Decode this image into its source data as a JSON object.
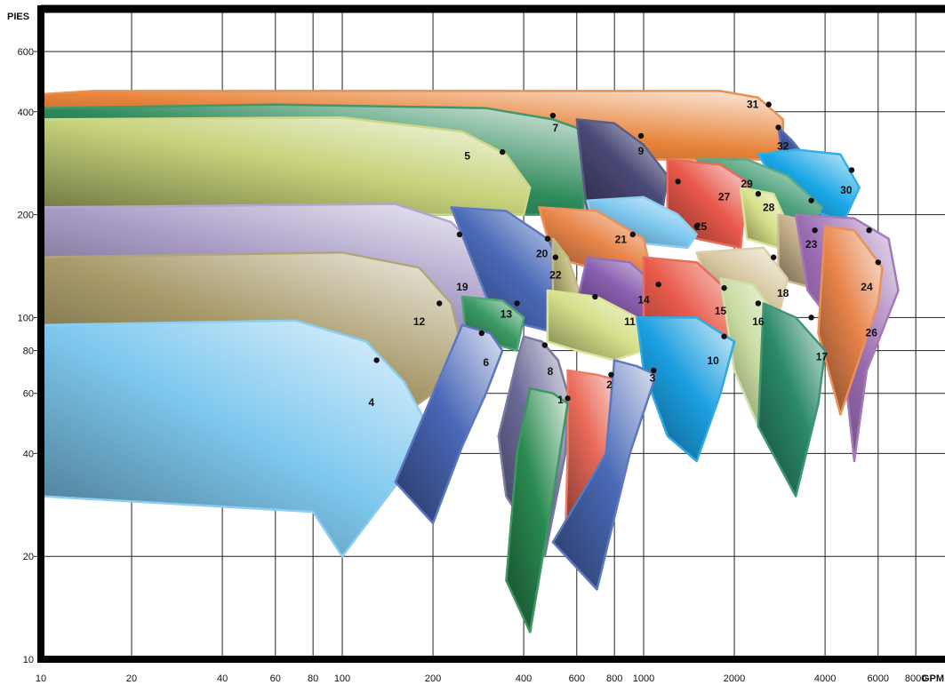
{
  "chart_data": {
    "type": "area",
    "title": "",
    "ylabel": "PIES",
    "xlabel": "GPM",
    "x_scale": "log",
    "y_scale": "log",
    "xlim": [
      10,
      10000
    ],
    "ylim": [
      10,
      800
    ],
    "grid": true,
    "x_ticks": [
      10,
      20,
      40,
      60,
      80,
      100,
      200,
      400,
      600,
      800,
      1000,
      2000,
      4000,
      6000,
      8000
    ],
    "x_tick_labels": [
      "10",
      "20",
      "40",
      "60",
      "80",
      "100",
      "200",
      "400",
      "600",
      "800",
      "1000",
      "2000",
      "4000",
      "6000",
      "8000"
    ],
    "y_ticks": [
      10,
      20,
      40,
      60,
      80,
      100,
      200,
      400,
      600
    ],
    "y_tick_labels": [
      "10",
      "20",
      "40",
      "60",
      "80",
      "100",
      "200",
      "400",
      "600"
    ],
    "zones": [
      {
        "id": "31",
        "bep": [
          2600,
          420
        ],
        "label_at": [
          2300,
          410
        ],
        "color": "#e8843a",
        "outline": [
          [
            10,
            450
          ],
          [
            15,
            460
          ],
          [
            1800,
            460
          ],
          [
            2400,
            440
          ],
          [
            2900,
            380
          ],
          [
            2900,
            290
          ],
          [
            10,
            290
          ]
        ]
      },
      {
        "id": "32",
        "bep": [
          2800,
          360
        ],
        "label_at": [
          2900,
          310
        ],
        "color": "#4a5fa8",
        "outline": [
          [
            2800,
            360
          ],
          [
            3100,
            330
          ],
          [
            3500,
            290
          ],
          [
            2900,
            290
          ]
        ]
      },
      {
        "id": "7",
        "bep": [
          500,
          390
        ],
        "label_at": [
          510,
          350
        ],
        "color": "#2e8a5a",
        "outline": [
          [
            10,
            410
          ],
          [
            60,
            420
          ],
          [
            300,
            410
          ],
          [
            500,
            380
          ],
          [
            650,
            350
          ],
          [
            630,
            200
          ],
          [
            10,
            200
          ]
        ]
      },
      {
        "id": "9",
        "bep": [
          980,
          340
        ],
        "label_at": [
          980,
          300
        ],
        "color": "#4a4a78",
        "outline": [
          [
            600,
            380
          ],
          [
            800,
            370
          ],
          [
            1000,
            320
          ],
          [
            1200,
            260
          ],
          [
            1150,
            200
          ],
          [
            650,
            200
          ]
        ]
      },
      {
        "id": "5",
        "bep": [
          340,
          305
        ],
        "label_at": [
          260,
          290
        ],
        "color": "#c7d27a",
        "outline": [
          [
            10,
            380
          ],
          [
            100,
            385
          ],
          [
            250,
            350
          ],
          [
            350,
            300
          ],
          [
            420,
            240
          ],
          [
            400,
            200
          ],
          [
            10,
            200
          ]
        ]
      },
      {
        "id": "30",
        "bep": [
          4900,
          270
        ],
        "label_at": [
          4700,
          230
        ],
        "color": "#1aa6e6",
        "outline": [
          [
            2400,
            300
          ],
          [
            3200,
            310
          ],
          [
            4500,
            300
          ],
          [
            5200,
            240
          ],
          [
            4600,
            190
          ],
          [
            3000,
            220
          ]
        ]
      },
      {
        "id": "29",
        "bep": [
          3600,
          220
        ],
        "label_at": [
          2200,
          240
        ],
        "color": "#4aa07a",
        "outline": [
          [
            1500,
            290
          ],
          [
            2200,
            290
          ],
          [
            3000,
            260
          ],
          [
            3900,
            210
          ],
          [
            3600,
            180
          ],
          [
            2200,
            200
          ]
        ]
      },
      {
        "id": "27",
        "bep": [
          1300,
          250
        ],
        "label_at": [
          1850,
          220
        ],
        "color": "#e8584a",
        "outline": [
          [
            1200,
            290
          ],
          [
            1800,
            280
          ],
          [
            2200,
            250
          ],
          [
            2100,
            160
          ],
          [
            1500,
            170
          ],
          [
            1200,
            200
          ]
        ]
      },
      {
        "id": "28",
        "bep": [
          2400,
          230
        ],
        "label_at": [
          2600,
          205
        ],
        "color": "#d6e08a",
        "outline": [
          [
            2100,
            240
          ],
          [
            2700,
            230
          ],
          [
            2900,
            200
          ],
          [
            2800,
            160
          ],
          [
            2200,
            170
          ]
        ]
      },
      {
        "id": "25",
        "bep": [
          1500,
          185
        ],
        "label_at": [
          1550,
          180
        ],
        "color": "#7ec8ef",
        "outline": [
          [
            650,
            220
          ],
          [
            1000,
            225
          ],
          [
            1300,
            200
          ],
          [
            1500,
            175
          ],
          [
            1400,
            160
          ],
          [
            700,
            170
          ]
        ]
      },
      {
        "id": "21",
        "bep": [
          920,
          175
        ],
        "label_at": [
          840,
          165
        ],
        "color": "#e8864a",
        "outline": [
          [
            450,
            210
          ],
          [
            700,
            205
          ],
          [
            1000,
            170
          ],
          [
            1050,
            140
          ],
          [
            900,
            130
          ],
          [
            500,
            150
          ]
        ]
      },
      {
        "id": "23",
        "bep": [
          3700,
          180
        ],
        "label_at": [
          3600,
          160
        ],
        "color": "#c4b08a",
        "outline": [
          [
            2800,
            200
          ],
          [
            3700,
            190
          ],
          [
            4200,
            160
          ],
          [
            3900,
            120
          ],
          [
            2800,
            130
          ]
        ]
      },
      {
        "id": "26",
        "bep": [
          5600,
          180
        ],
        "label_at": [
          5700,
          88
        ],
        "color": "#9a6ab0",
        "outline": [
          [
            3200,
            200
          ],
          [
            5000,
            195
          ],
          [
            6500,
            170
          ],
          [
            7000,
            120
          ],
          [
            5500,
            70
          ],
          [
            5000,
            38
          ],
          [
            4500,
            90
          ],
          [
            3500,
            120
          ]
        ]
      },
      {
        "id": "24",
        "bep": [
          6000,
          145
        ],
        "label_at": [
          5500,
          120
        ],
        "color": "#e8844a",
        "outline": [
          [
            4000,
            185
          ],
          [
            5000,
            180
          ],
          [
            6200,
            140
          ],
          [
            6000,
            110
          ],
          [
            4500,
            52
          ],
          [
            3800,
            90
          ]
        ]
      },
      {
        "id": "19",
        "bep": [
          245,
          175
        ],
        "label_at": [
          250,
          120
        ],
        "color": "#a89cc6",
        "outline": [
          [
            10,
            210
          ],
          [
            150,
            215
          ],
          [
            230,
            190
          ],
          [
            300,
            150
          ],
          [
            340,
            110
          ],
          [
            300,
            90
          ],
          [
            10,
            130
          ]
        ]
      },
      {
        "id": "20",
        "bep": [
          480,
          170
        ],
        "label_at": [
          460,
          150
        ],
        "color": "#4a6ab8",
        "outline": [
          [
            230,
            210
          ],
          [
            350,
            205
          ],
          [
            480,
            170
          ],
          [
            560,
            130
          ],
          [
            520,
            90
          ],
          [
            320,
            100
          ]
        ]
      },
      {
        "id": "22",
        "bep": [
          510,
          150
        ],
        "label_at": [
          510,
          130
        ],
        "color": "#b8b478",
        "outline": [
          [
            500,
            170
          ],
          [
            560,
            150
          ],
          [
            610,
            120
          ],
          [
            560,
            95
          ],
          [
            500,
            110
          ]
        ]
      },
      {
        "id": "18",
        "bep": [
          2700,
          150
        ],
        "label_at": [
          2900,
          115
        ],
        "color": "#d8c8a0",
        "outline": [
          [
            1500,
            155
          ],
          [
            2500,
            160
          ],
          [
            3000,
            130
          ],
          [
            2800,
            100
          ],
          [
            1700,
            110
          ]
        ]
      },
      {
        "id": "14",
        "bep": [
          1120,
          125
        ],
        "label_at": [
          1000,
          110
        ],
        "color": "#8a60b0",
        "outline": [
          [
            650,
            150
          ],
          [
            900,
            145
          ],
          [
            1150,
            120
          ],
          [
            1200,
            100
          ],
          [
            900,
            95
          ],
          [
            600,
            110
          ]
        ]
      },
      {
        "id": "15",
        "bep": [
          1850,
          122
        ],
        "label_at": [
          1800,
          102
        ],
        "color": "#e85a4a",
        "outline": [
          [
            1000,
            150
          ],
          [
            1500,
            145
          ],
          [
            1900,
            120
          ],
          [
            2100,
            100
          ],
          [
            1700,
            60
          ],
          [
            1400,
            80
          ],
          [
            1000,
            100
          ]
        ]
      },
      {
        "id": "16",
        "bep": [
          2400,
          110
        ],
        "label_at": [
          2400,
          95
        ],
        "color": "#c8dca0",
        "outline": [
          [
            1800,
            130
          ],
          [
            2300,
            125
          ],
          [
            2800,
            100
          ],
          [
            2400,
            48
          ],
          [
            2000,
            70
          ]
        ]
      },
      {
        "id": "17",
        "bep": [
          3600,
          100
        ],
        "label_at": [
          3900,
          75
        ],
        "color": "#2a8a68",
        "outline": [
          [
            2500,
            110
          ],
          [
            3200,
            100
          ],
          [
            4000,
            80
          ],
          [
            3800,
            56
          ],
          [
            3200,
            30
          ],
          [
            2400,
            48
          ]
        ]
      },
      {
        "id": "11",
        "bep": [
          690,
          115
        ],
        "label_at": [
          900,
          95
        ],
        "color": "#d6e08a",
        "outline": [
          [
            480,
            120
          ],
          [
            700,
            115
          ],
          [
            950,
            100
          ],
          [
            1000,
            80
          ],
          [
            800,
            75
          ],
          [
            600,
            80
          ],
          [
            480,
            85
          ]
        ]
      },
      {
        "id": "10",
        "bep": [
          1850,
          88
        ],
        "label_at": [
          1700,
          73
        ],
        "color": "#1a9ee0",
        "outline": [
          [
            950,
            100
          ],
          [
            1500,
            100
          ],
          [
            2000,
            85
          ],
          [
            1800,
            60
          ],
          [
            1500,
            38
          ],
          [
            1200,
            45
          ],
          [
            1000,
            70
          ]
        ]
      },
      {
        "id": "12",
        "bep": [
          210,
          110
        ],
        "label_at": [
          180,
          95
        ],
        "color": "#a89a6a",
        "outline": [
          [
            10,
            150
          ],
          [
            100,
            155
          ],
          [
            180,
            140
          ],
          [
            230,
            110
          ],
          [
            250,
            80
          ],
          [
            200,
            60
          ],
          [
            150,
            50
          ],
          [
            10,
            80
          ]
        ]
      },
      {
        "id": "13",
        "bep": [
          380,
          110
        ],
        "label_at": [
          350,
          100
        ],
        "color": "#3a9a64",
        "outline": [
          [
            250,
            115
          ],
          [
            340,
            112
          ],
          [
            400,
            100
          ],
          [
            380,
            80
          ],
          [
            300,
            85
          ],
          [
            255,
            95
          ]
        ]
      },
      {
        "id": "4",
        "bep": [
          130,
          75
        ],
        "label_at": [
          125,
          55
        ],
        "color": "#7ec8ef",
        "outline": [
          [
            10,
            95
          ],
          [
            70,
            98
          ],
          [
            120,
            85
          ],
          [
            160,
            65
          ],
          [
            200,
            45
          ],
          [
            100,
            20
          ],
          [
            80,
            27
          ],
          [
            10,
            30
          ]
        ]
      },
      {
        "id": "6",
        "bep": [
          290,
          90
        ],
        "label_at": [
          300,
          72
        ],
        "color": "#4a68b8",
        "outline": [
          [
            250,
            95
          ],
          [
            310,
            90
          ],
          [
            340,
            80
          ],
          [
            300,
            60
          ],
          [
            250,
            42
          ],
          [
            200,
            25
          ],
          [
            150,
            33
          ],
          [
            230,
            80
          ]
        ]
      },
      {
        "id": "8",
        "bep": [
          470,
          83
        ],
        "label_at": [
          490,
          68
        ],
        "color": "#6a6a98",
        "outline": [
          [
            400,
            88
          ],
          [
            460,
            85
          ],
          [
            520,
            75
          ],
          [
            560,
            60
          ],
          [
            550,
            40
          ],
          [
            470,
            20
          ],
          [
            350,
            30
          ],
          [
            330,
            45
          ],
          [
            380,
            75
          ]
        ]
      },
      {
        "id": "2",
        "bep": [
          780,
          68
        ],
        "label_at": [
          770,
          62
        ],
        "color": "#ea6a58",
        "outline": [
          [
            560,
            70
          ],
          [
            700,
            68
          ],
          [
            850,
            65
          ],
          [
            800,
            45
          ],
          [
            700,
            26
          ],
          [
            550,
            23
          ],
          [
            560,
            40
          ]
        ]
      },
      {
        "id": "3",
        "bep": [
          1080,
          70
        ],
        "label_at": [
          1070,
          65
        ],
        "color": "#4a6ab8",
        "outline": [
          [
            800,
            75
          ],
          [
            950,
            72
          ],
          [
            1100,
            68
          ],
          [
            900,
            40
          ],
          [
            700,
            16
          ],
          [
            500,
            22
          ],
          [
            750,
            40
          ]
        ]
      },
      {
        "id": "1",
        "bep": [
          560,
          58
        ],
        "label_at": [
          530,
          56
        ],
        "color": "#2a8a50",
        "outline": [
          [
            420,
            62
          ],
          [
            500,
            60
          ],
          [
            560,
            56
          ],
          [
            500,
            30
          ],
          [
            420,
            12
          ],
          [
            350,
            17
          ],
          [
            380,
            40
          ]
        ]
      }
    ]
  }
}
